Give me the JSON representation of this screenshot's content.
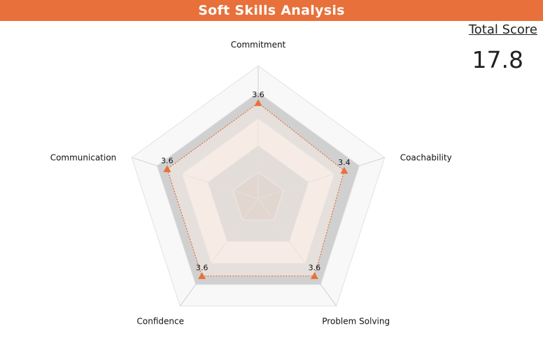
{
  "header": {
    "title": "Soft Skills Analysis"
  },
  "score": {
    "label": "Total Score",
    "value": "17.8"
  },
  "chart_data": {
    "type": "radar",
    "categories": [
      "Commitment",
      "Coachability",
      "Problem Solving",
      "Confidence",
      "Communication"
    ],
    "values": [
      3.6,
      3.4,
      3.6,
      3.6,
      3.6
    ],
    "value_labels": [
      "3.6",
      "3.4",
      "3.6",
      "3.6",
      "3.6"
    ],
    "range": [
      0,
      5
    ],
    "bands": 5,
    "colors": {
      "accent": "#e8703a",
      "band_light": "#f8f8f8",
      "band_mid": "#d0d0d0",
      "band_pink": "#f7ebe5",
      "band_dark": "#c9c9c9",
      "band_tan": "#c8bcb7"
    }
  }
}
